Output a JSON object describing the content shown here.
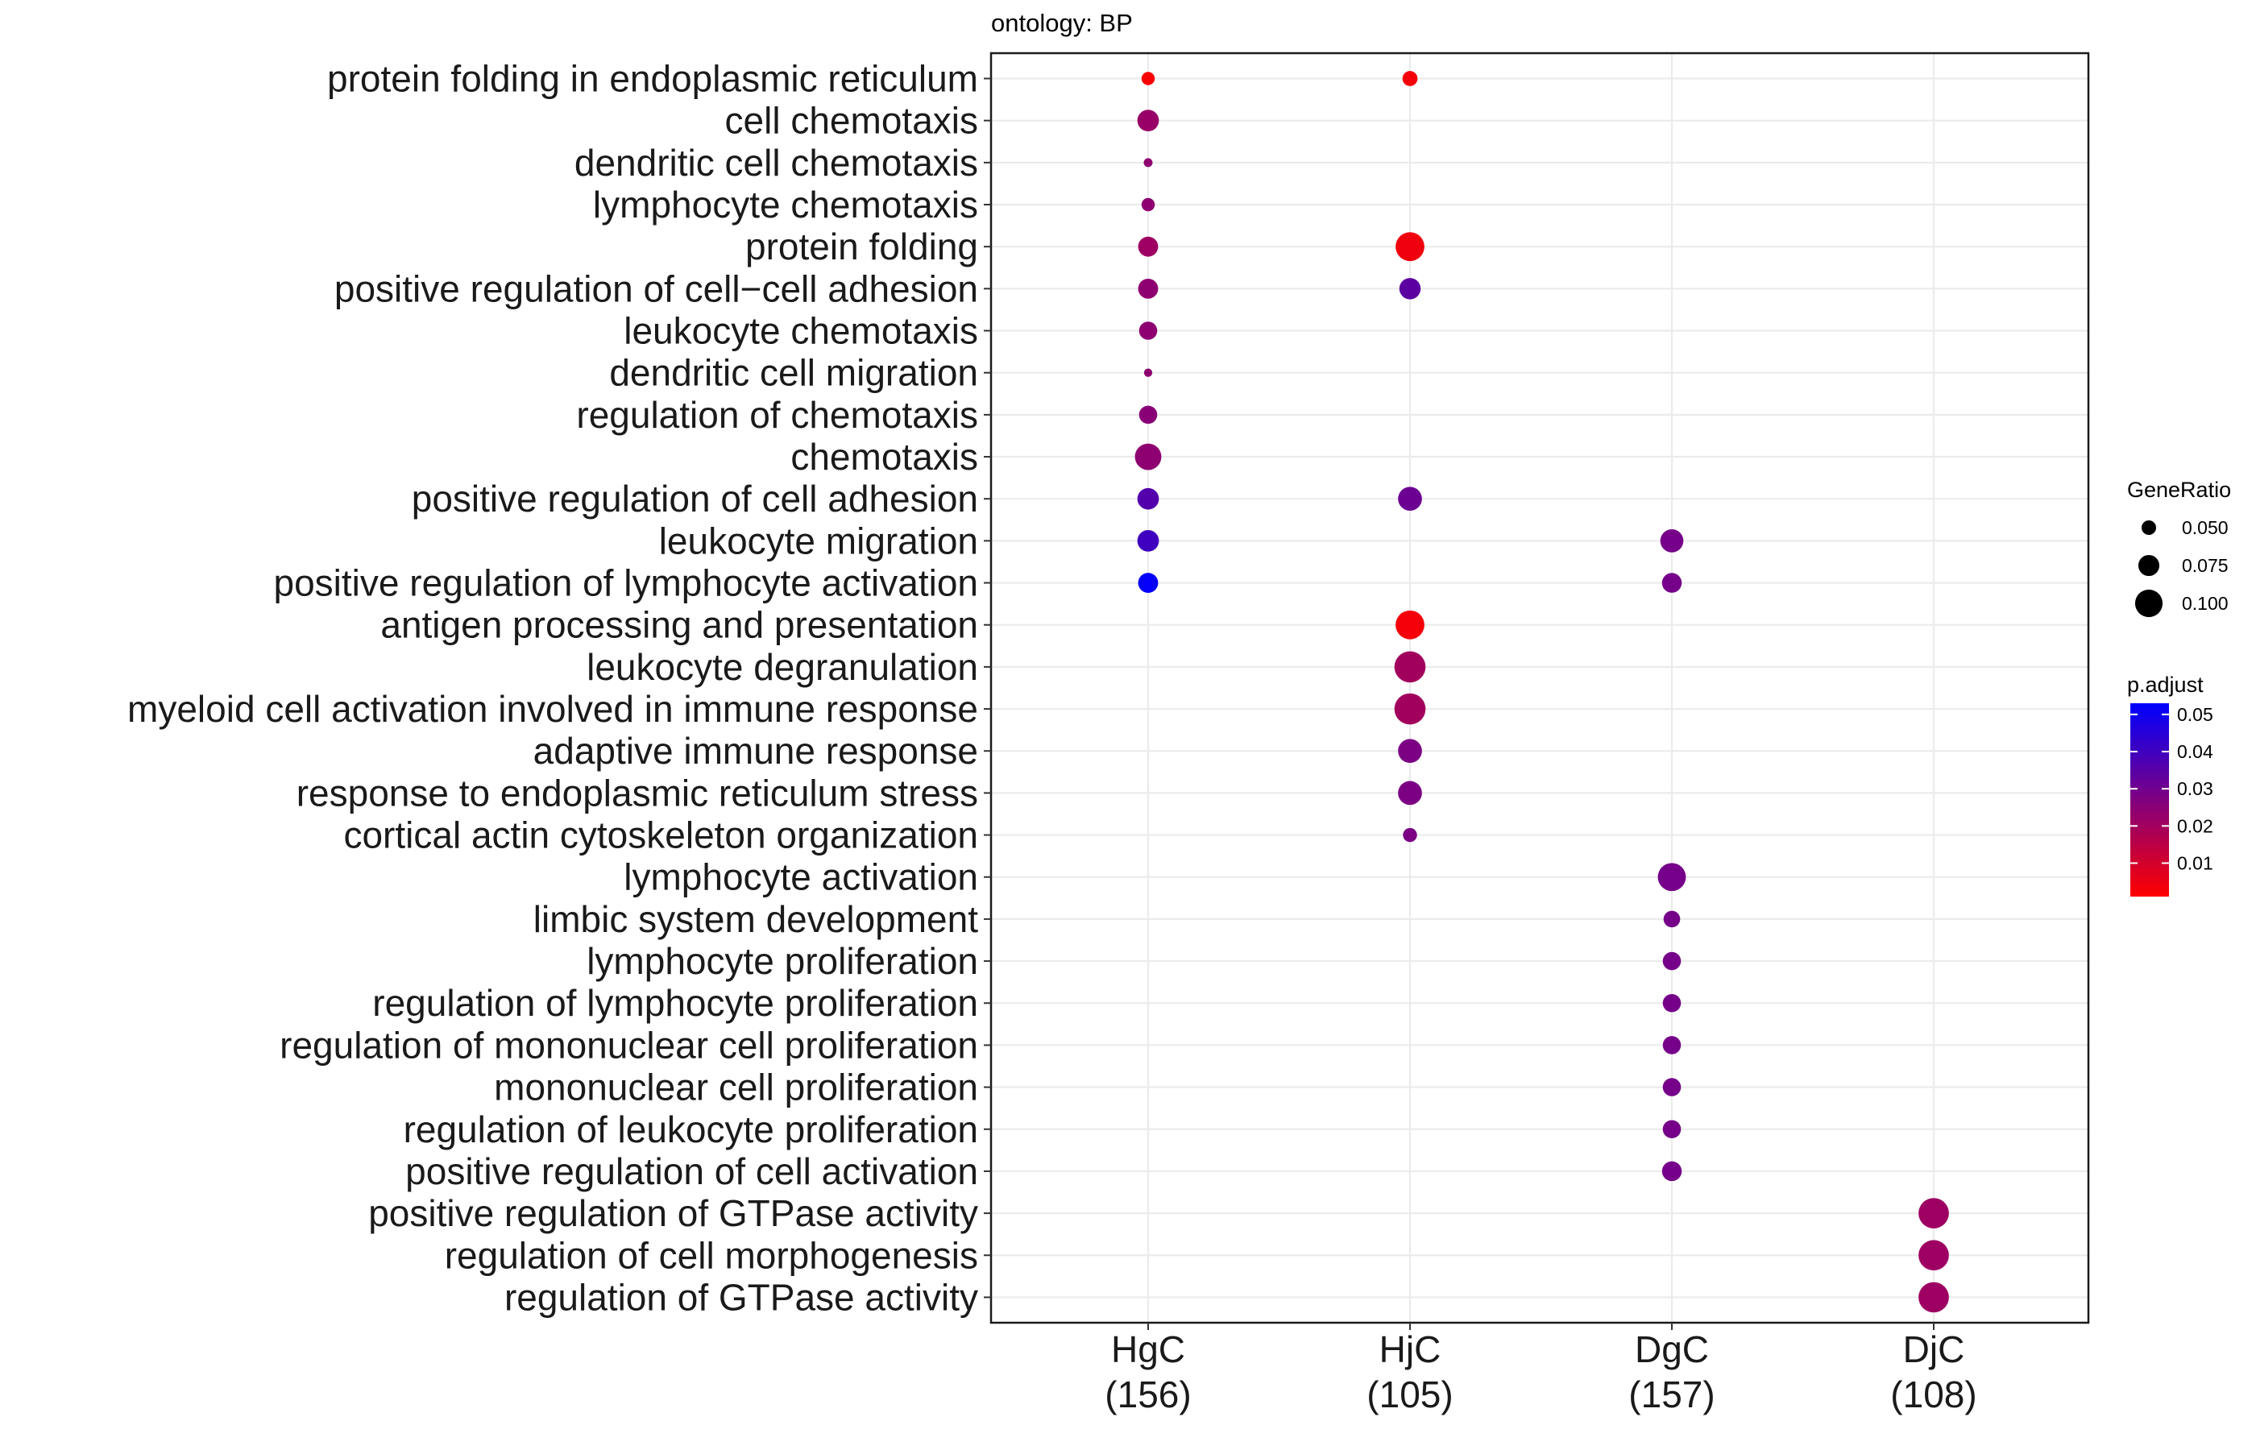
{
  "chart_data": {
    "type": "scatter",
    "subtitle": "ontology: BP",
    "terms": [
      "protein folding in endoplasmic reticulum",
      "cell chemotaxis",
      "dendritic cell chemotaxis",
      "lymphocyte chemotaxis",
      "protein folding",
      "positive regulation of cell−cell adhesion",
      "leukocyte chemotaxis",
      "dendritic cell migration",
      "regulation of chemotaxis",
      "chemotaxis",
      "positive regulation of cell adhesion",
      "leukocyte migration",
      "positive regulation of lymphocyte activation",
      "antigen processing and presentation",
      "leukocyte degranulation",
      "myeloid cell activation involved in immune response",
      "adaptive immune response",
      "response to endoplasmic reticulum stress",
      "cortical actin cytoskeleton organization",
      "lymphocyte activation",
      "limbic system development",
      "lymphocyte proliferation",
      "regulation of lymphocyte proliferation",
      "regulation of mononuclear cell proliferation",
      "mononuclear cell proliferation",
      "regulation of leukocyte proliferation",
      "positive regulation of cell activation",
      "positive regulation of GTPase activity",
      "regulation of cell morphogenesis",
      "regulation of GTPase activity"
    ],
    "groups": [
      {
        "name": "HgC",
        "count": "(156)"
      },
      {
        "name": "HjC",
        "count": "(105)"
      },
      {
        "name": "DgC",
        "count": "(157)"
      },
      {
        "name": "DjC",
        "count": "(108)"
      }
    ],
    "points": [
      {
        "term": "protein folding in endoplasmic reticulum",
        "group": "HgC",
        "gene_ratio": 0.045,
        "p_adjust": 0.002
      },
      {
        "term": "cell chemotaxis",
        "group": "HgC",
        "gene_ratio": 0.077,
        "p_adjust": 0.022
      },
      {
        "term": "dendritic cell chemotaxis",
        "group": "HgC",
        "gene_ratio": 0.028,
        "p_adjust": 0.024
      },
      {
        "term": "lymphocyte chemotaxis",
        "group": "HgC",
        "gene_ratio": 0.045,
        "p_adjust": 0.024
      },
      {
        "term": "protein folding",
        "group": "HgC",
        "gene_ratio": 0.071,
        "p_adjust": 0.021
      },
      {
        "term": "positive regulation of cell−cell adhesion",
        "group": "HgC",
        "gene_ratio": 0.071,
        "p_adjust": 0.024
      },
      {
        "term": "leukocyte chemotaxis",
        "group": "HgC",
        "gene_ratio": 0.064,
        "p_adjust": 0.024
      },
      {
        "term": "dendritic cell migration",
        "group": "HgC",
        "gene_ratio": 0.026,
        "p_adjust": 0.024
      },
      {
        "term": "regulation of chemotaxis",
        "group": "HgC",
        "gene_ratio": 0.064,
        "p_adjust": 0.025
      },
      {
        "term": "chemotaxis",
        "group": "HgC",
        "gene_ratio": 0.096,
        "p_adjust": 0.024
      },
      {
        "term": "positive regulation of cell adhesion",
        "group": "HgC",
        "gene_ratio": 0.077,
        "p_adjust": 0.036
      },
      {
        "term": "leukocyte migration",
        "group": "HgC",
        "gene_ratio": 0.077,
        "p_adjust": 0.04
      },
      {
        "term": "positive regulation of lymphocyte activation",
        "group": "HgC",
        "gene_ratio": 0.071,
        "p_adjust": 0.052
      },
      {
        "term": "protein folding in endoplasmic reticulum",
        "group": "HjC",
        "gene_ratio": 0.052,
        "p_adjust": 0.003
      },
      {
        "term": "protein folding",
        "group": "HjC",
        "gene_ratio": 0.105,
        "p_adjust": 0.004
      },
      {
        "term": "positive regulation of cell−cell adhesion",
        "group": "HjC",
        "gene_ratio": 0.076,
        "p_adjust": 0.034
      },
      {
        "term": "positive regulation of cell adhesion",
        "group": "HjC",
        "gene_ratio": 0.086,
        "p_adjust": 0.031
      },
      {
        "term": "antigen processing and presentation",
        "group": "HjC",
        "gene_ratio": 0.105,
        "p_adjust": 0.003
      },
      {
        "term": "leukocyte degranulation",
        "group": "HjC",
        "gene_ratio": 0.114,
        "p_adjust": 0.02
      },
      {
        "term": "myeloid cell activation involved in immune response",
        "group": "HjC",
        "gene_ratio": 0.114,
        "p_adjust": 0.02
      },
      {
        "term": "adaptive immune response",
        "group": "HjC",
        "gene_ratio": 0.086,
        "p_adjust": 0.028
      },
      {
        "term": "response to endoplasmic reticulum stress",
        "group": "HjC",
        "gene_ratio": 0.086,
        "p_adjust": 0.028
      },
      {
        "term": "cortical actin cytoskeleton organization",
        "group": "HjC",
        "gene_ratio": 0.048,
        "p_adjust": 0.028
      },
      {
        "term": "leukocyte migration",
        "group": "DgC",
        "gene_ratio": 0.083,
        "p_adjust": 0.029
      },
      {
        "term": "positive regulation of lymphocyte activation",
        "group": "DgC",
        "gene_ratio": 0.07,
        "p_adjust": 0.029
      },
      {
        "term": "lymphocyte activation",
        "group": "DgC",
        "gene_ratio": 0.102,
        "p_adjust": 0.029
      },
      {
        "term": "limbic system development",
        "group": "DgC",
        "gene_ratio": 0.058,
        "p_adjust": 0.029
      },
      {
        "term": "lymphocyte proliferation",
        "group": "DgC",
        "gene_ratio": 0.064,
        "p_adjust": 0.029
      },
      {
        "term": "regulation of lymphocyte proliferation",
        "group": "DgC",
        "gene_ratio": 0.064,
        "p_adjust": 0.029
      },
      {
        "term": "regulation of mononuclear cell proliferation",
        "group": "DgC",
        "gene_ratio": 0.064,
        "p_adjust": 0.029
      },
      {
        "term": "mononuclear cell proliferation",
        "group": "DgC",
        "gene_ratio": 0.064,
        "p_adjust": 0.029
      },
      {
        "term": "regulation of leukocyte proliferation",
        "group": "DgC",
        "gene_ratio": 0.064,
        "p_adjust": 0.029
      },
      {
        "term": "positive regulation of cell activation",
        "group": "DgC",
        "gene_ratio": 0.07,
        "p_adjust": 0.029
      },
      {
        "term": "positive regulation of GTPase activity",
        "group": "DjC",
        "gene_ratio": 0.111,
        "p_adjust": 0.021
      },
      {
        "term": "regulation of cell morphogenesis",
        "group": "DjC",
        "gene_ratio": 0.111,
        "p_adjust": 0.021
      },
      {
        "term": "regulation of GTPase activity",
        "group": "DjC",
        "gene_ratio": 0.111,
        "p_adjust": 0.021
      }
    ],
    "size_legend": {
      "title": "GeneRatio",
      "ticks": [
        0.05,
        0.075,
        0.1
      ],
      "tick_labels": [
        "0.050",
        "0.075",
        "0.100"
      ]
    },
    "color_legend": {
      "title": "p.adjust",
      "ticks": [
        0.05,
        0.04,
        0.03,
        0.02,
        0.01
      ],
      "tick_labels": [
        "0.05",
        "0.04",
        "0.03",
        "0.02",
        "0.01"
      ],
      "low_color": "#ff0000",
      "high_color": "#0000ff",
      "range": [
        0.001,
        0.053
      ]
    },
    "grid": true,
    "legend_position": "right"
  }
}
